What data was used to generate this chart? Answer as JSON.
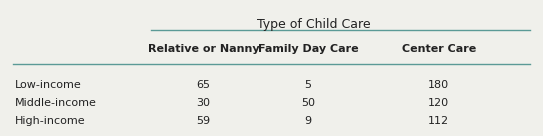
{
  "title": "Type of Child Care",
  "col_headers": [
    "Relative or Nanny",
    "Family Day Care",
    "Center Care"
  ],
  "row_headers": [
    "Low-income",
    "Middle-income",
    "High-income"
  ],
  "data": [
    [
      "65",
      "5",
      "180"
    ],
    [
      "30",
      "50",
      "120"
    ],
    [
      "59",
      "9",
      "112"
    ]
  ],
  "background_color": "#f0f0eb",
  "header_line_color": "#5b9a96",
  "text_color": "#222222",
  "header_fontsize": 8.0,
  "data_fontsize": 8.0,
  "title_fontsize": 9.0
}
